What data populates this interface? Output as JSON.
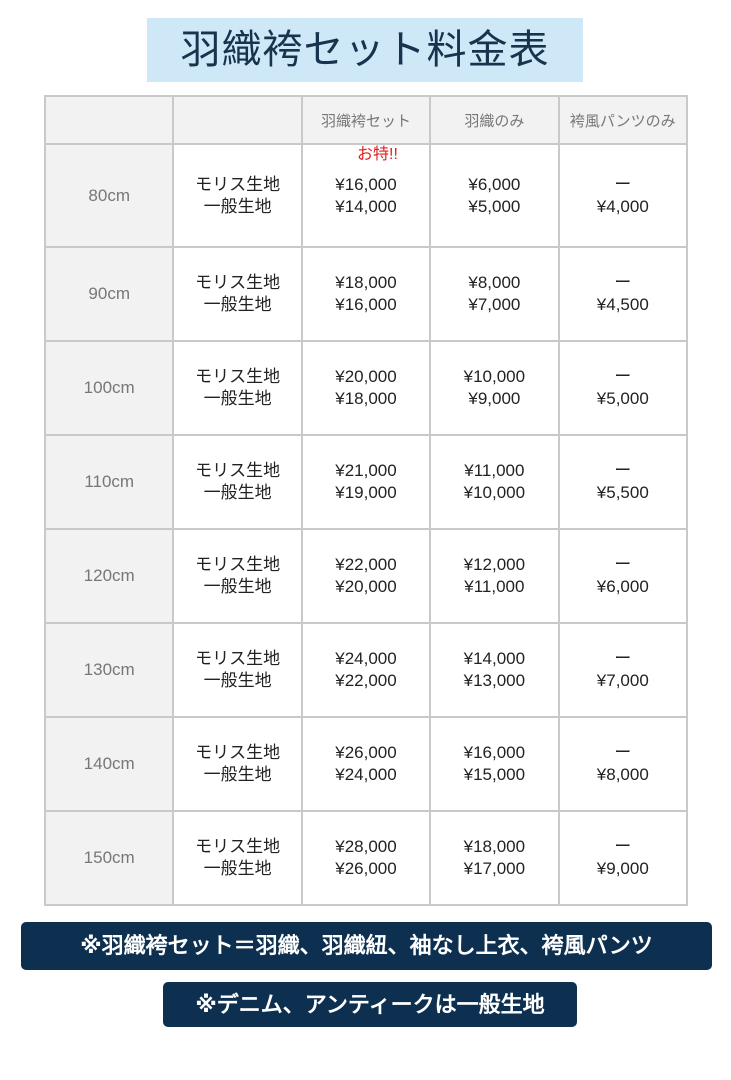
{
  "title": "羽織袴セット料金表",
  "table": {
    "headers": [
      "",
      "",
      "羽織袴セット",
      "羽織のみ",
      "袴風パンツのみ"
    ],
    "badge": "お特!!",
    "fabrics": [
      "モリス生地",
      "一般生地"
    ],
    "rows": [
      {
        "size": "80cm",
        "set": [
          "¥16,000",
          "¥14,000"
        ],
        "haori": [
          "¥6,000",
          "¥5,000"
        ],
        "pants": [
          "ー",
          "¥4,000"
        ]
      },
      {
        "size": "90cm",
        "set": [
          "¥18,000",
          "¥16,000"
        ],
        "haori": [
          "¥8,000",
          "¥7,000"
        ],
        "pants": [
          "ー",
          "¥4,500"
        ]
      },
      {
        "size": "100cm",
        "set": [
          "¥20,000",
          "¥18,000"
        ],
        "haori": [
          "¥10,000",
          "¥9,000"
        ],
        "pants": [
          "ー",
          "¥5,000"
        ]
      },
      {
        "size": "110cm",
        "set": [
          "¥21,000",
          "¥19,000"
        ],
        "haori": [
          "¥11,000",
          "¥10,000"
        ],
        "pants": [
          "ー",
          "¥5,500"
        ]
      },
      {
        "size": "120cm",
        "set": [
          "¥22,000",
          "¥20,000"
        ],
        "haori": [
          "¥12,000",
          "¥11,000"
        ],
        "pants": [
          "ー",
          "¥6,000"
        ]
      },
      {
        "size": "130cm",
        "set": [
          "¥24,000",
          "¥22,000"
        ],
        "haori": [
          "¥14,000",
          "¥13,000"
        ],
        "pants": [
          "ー",
          "¥7,000"
        ]
      },
      {
        "size": "140cm",
        "set": [
          "¥26,000",
          "¥24,000"
        ],
        "haori": [
          "¥16,000",
          "¥15,000"
        ],
        "pants": [
          "ー",
          "¥8,000"
        ]
      },
      {
        "size": "150cm",
        "set": [
          "¥28,000",
          "¥26,000"
        ],
        "haori": [
          "¥18,000",
          "¥17,000"
        ],
        "pants": [
          "ー",
          "¥9,000"
        ]
      }
    ]
  },
  "notes": [
    "※羽織袴セット＝羽織、羽織紐、袖なし上衣、袴風パンツ",
    "※デニム、アンティークは一般生地"
  ],
  "colors": {
    "title_bg": "#cfe8f7",
    "note_bg": "#0d3050",
    "badge": "#e0201e"
  }
}
